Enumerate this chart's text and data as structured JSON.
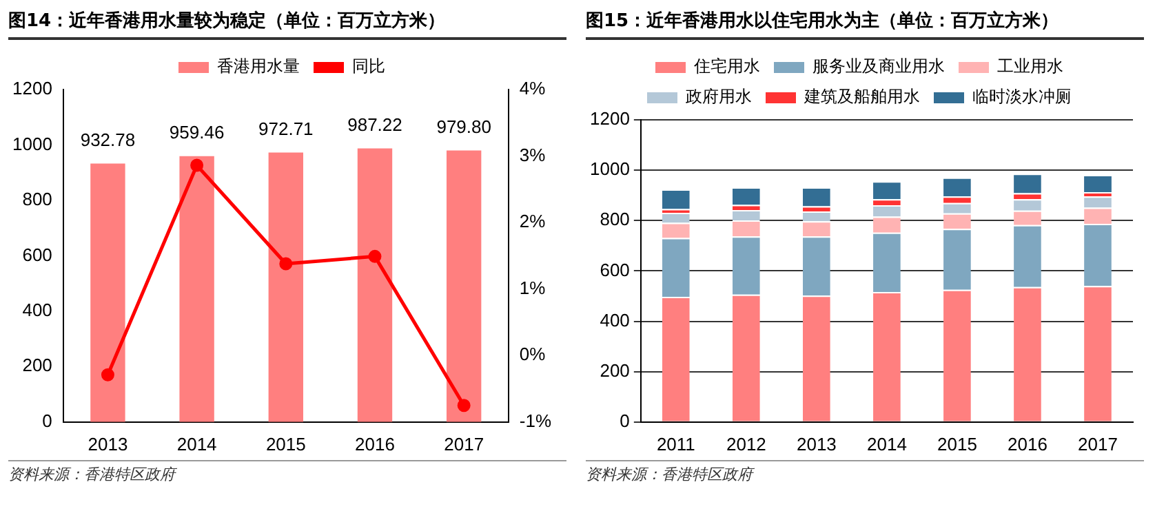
{
  "chart_data": [
    {
      "type": "bar",
      "title": "图14：近年香港用水量较为稳定（单位：百万立方米）",
      "categories": [
        "2013",
        "2014",
        "2015",
        "2016",
        "2017"
      ],
      "series": [
        {
          "name": "香港用水量",
          "color": "#ff7f7f",
          "values": [
            932.78,
            959.46,
            972.71,
            987.22,
            979.8
          ],
          "value_labels": [
            "932.78",
            "959.46",
            "972.71",
            "987.22",
            "979.80"
          ]
        },
        {
          "name": "同比",
          "type": "line",
          "axis": "y2",
          "color": "#ff0000",
          "marker": "circle",
          "values": [
            -0.29,
            2.86,
            1.38,
            1.49,
            -0.75
          ]
        }
      ],
      "ylim": [
        0,
        1200
      ],
      "yticks": [
        0,
        200,
        400,
        600,
        800,
        1000,
        1200
      ],
      "y2lim": [
        -1,
        4
      ],
      "y2ticks": [
        {
          "value": -1,
          "label": "-1%"
        },
        {
          "value": 0,
          "label": "0%"
        },
        {
          "value": 1,
          "label": "1%"
        },
        {
          "value": 2,
          "label": "2%"
        },
        {
          "value": 3,
          "label": "3%"
        },
        {
          "value": 4,
          "label": "4%"
        }
      ],
      "grid": false,
      "legend": "top",
      "annotations": [
        "资料来源：香港特区政府"
      ]
    },
    {
      "type": "bar",
      "stacked": true,
      "title": "图15：近年香港用水以住宅用水为主（单位：百万立方米）",
      "categories": [
        "2011",
        "2012",
        "2013",
        "2014",
        "2015",
        "2016",
        "2017"
      ],
      "series": [
        {
          "name": "住宅用水",
          "color": "#ff7f7f",
          "values": [
            497,
            506,
            502,
            516,
            525,
            536,
            540
          ]
        },
        {
          "name": "服务业及商业用水",
          "color": "#7fa7c0",
          "values": [
            234,
            231,
            235,
            236,
            242,
            246,
            247
          ]
        },
        {
          "name": "工业用水",
          "color": "#ffb3b3",
          "values": [
            60,
            64,
            60,
            64,
            62,
            58,
            64
          ]
        },
        {
          "name": "政府用水",
          "color": "#b4c8d8",
          "values": [
            40,
            41,
            39,
            45,
            41,
            45,
            45
          ]
        },
        {
          "name": "建筑及船舶用水",
          "color": "#ff3333",
          "values": [
            15,
            20,
            21,
            24,
            26,
            24,
            17
          ]
        },
        {
          "name": "临时淡水冲厕",
          "color": "#336e94",
          "values": [
            78,
            70,
            75,
            71,
            75,
            77,
            68
          ]
        }
      ],
      "ylim": [
        0,
        1200
      ],
      "yticks": [
        0,
        200,
        400,
        600,
        800,
        1000,
        1200
      ],
      "grid": "y",
      "legend": "top",
      "annotations": [
        "资料来源：香港特区政府"
      ]
    }
  ]
}
